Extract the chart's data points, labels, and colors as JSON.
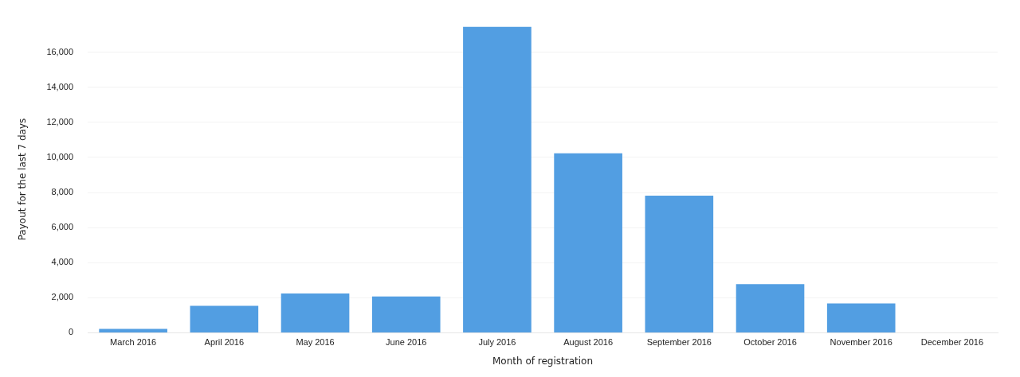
{
  "chart_data": {
    "type": "bar",
    "xlabel": "Month of registration",
    "ylabel": "Payout for the last 7 days",
    "categories": [
      "March 2016",
      "April 2016",
      "May 2016",
      "June 2016",
      "July 2016",
      "August 2016",
      "September 2016",
      "October 2016",
      "November 2016",
      "December 2016"
    ],
    "values": [
      220,
      1540,
      2240,
      2070,
      17450,
      10240,
      7820,
      2770,
      1670,
      null
    ],
    "color": "#529ee2",
    "ylim": [
      0,
      17500
    ],
    "yticks": [
      0,
      {
        "value": 2000,
        "label": "2,000"
      },
      {
        "value": 4000,
        "label": "4,000"
      },
      {
        "value": 6000,
        "label": "6,000"
      },
      {
        "value": 8000,
        "label": "8,000"
      },
      {
        "value": 10000,
        "label": "10,000"
      },
      {
        "value": 12000,
        "label": "12,000"
      },
      {
        "value": 14000,
        "label": "14,000"
      },
      {
        "value": 16000,
        "label": "16,000"
      }
    ],
    "grid": "y",
    "legend": false
  }
}
